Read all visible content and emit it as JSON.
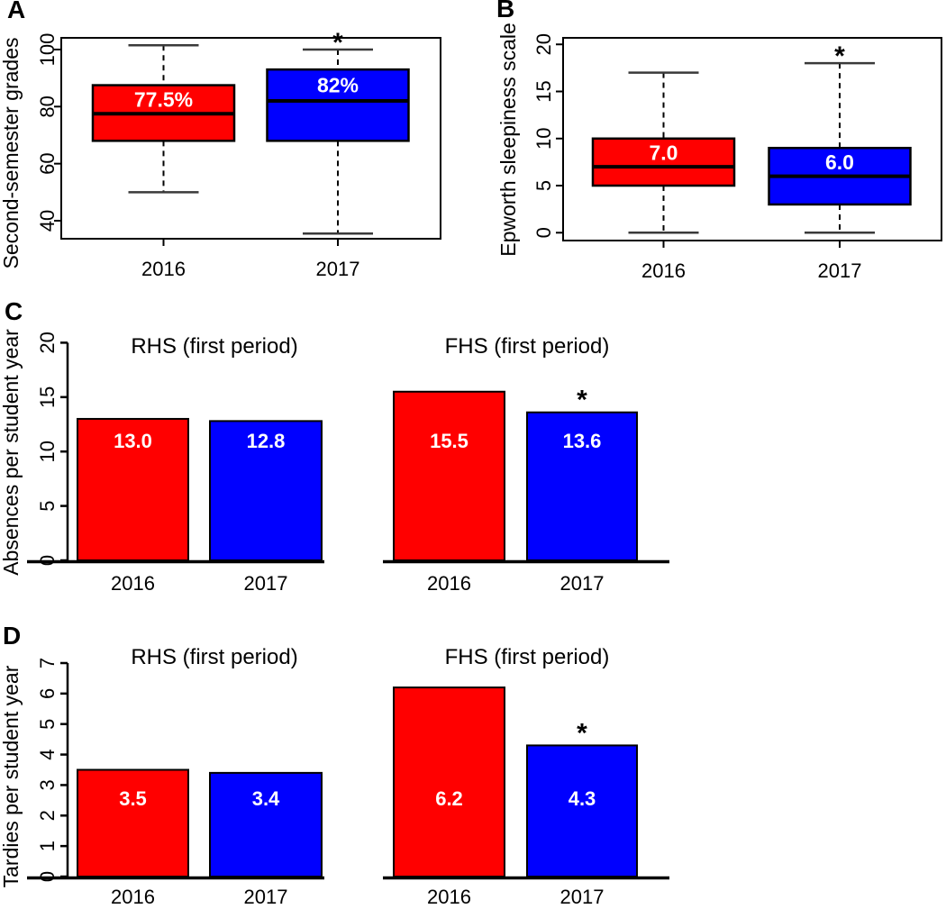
{
  "colors": {
    "red": "#FF0000",
    "blue": "#0000FF",
    "axis": "#000000",
    "whisker_cap": "#3A3A3A",
    "bar_label_text": "#FFFFFF"
  },
  "significance_marker": "*",
  "chart_data": [
    {
      "panel": "A",
      "type": "boxplot",
      "ylabel": "Second-semester grades",
      "yticks": [
        40,
        60,
        80,
        100
      ],
      "ylim": [
        33.7,
        104.1
      ],
      "categories": [
        "2016",
        "2017"
      ],
      "series": [
        {
          "name": "2016",
          "color": "#FF0000",
          "whisker_low": 50,
          "q1": 68,
          "median": 77.5,
          "q3": 87.5,
          "whisker_high": 101.5,
          "median_label": "77.5%",
          "significant": false
        },
        {
          "name": "2017",
          "color": "#0000FF",
          "whisker_low": 35.5,
          "q1": 68,
          "median": 82,
          "q3": 93,
          "whisker_high": 100,
          "median_label": "82%",
          "significant": true
        }
      ]
    },
    {
      "panel": "B",
      "type": "boxplot",
      "ylabel": "Epworth sleepiness scale",
      "yticks": [
        0,
        5,
        10,
        15,
        20
      ],
      "ylim": [
        -0.8,
        20.7
      ],
      "categories": [
        "2016",
        "2017"
      ],
      "series": [
        {
          "name": "2016",
          "color": "#FF0000",
          "whisker_low": 0,
          "q1": 5,
          "median": 7,
          "q3": 10,
          "whisker_high": 17,
          "median_label": "7.0",
          "significant": false
        },
        {
          "name": "2017",
          "color": "#0000FF",
          "whisker_low": 0,
          "q1": 3,
          "median": 6,
          "q3": 9,
          "whisker_high": 18,
          "median_label": "6.0",
          "significant": true
        }
      ]
    },
    {
      "panel": "C",
      "type": "bar",
      "ylabel": "Absences per student year",
      "yticks": [
        0,
        5,
        10,
        15,
        20
      ],
      "ylim": [
        0,
        20
      ],
      "groups": [
        {
          "title": "RHS (first period)",
          "categories": [
            "2016",
            "2017"
          ],
          "values": [
            13.0,
            12.8
          ],
          "value_labels": [
            "13.0",
            "12.8"
          ],
          "colors": [
            "#FF0000",
            "#0000FF"
          ],
          "significant": [
            false,
            false
          ]
        },
        {
          "title": "FHS (first period)",
          "categories": [
            "2016",
            "2017"
          ],
          "values": [
            15.5,
            13.6
          ],
          "value_labels": [
            "15.5",
            "13.6"
          ],
          "colors": [
            "#FF0000",
            "#0000FF"
          ],
          "significant": [
            false,
            true
          ]
        }
      ]
    },
    {
      "panel": "D",
      "type": "bar",
      "ylabel": "Tardies per student year",
      "yticks": [
        0,
        1,
        2,
        3,
        4,
        5,
        6,
        7
      ],
      "ylim": [
        0,
        7
      ],
      "groups": [
        {
          "title": "RHS (first period)",
          "categories": [
            "2016",
            "2017"
          ],
          "values": [
            3.5,
            3.4
          ],
          "value_labels": [
            "3.5",
            "3.4"
          ],
          "colors": [
            "#FF0000",
            "#0000FF"
          ],
          "significant": [
            false,
            false
          ]
        },
        {
          "title": "FHS (first period)",
          "categories": [
            "2016",
            "2017"
          ],
          "values": [
            6.2,
            4.3
          ],
          "value_labels": [
            "6.2",
            "4.3"
          ],
          "colors": [
            "#FF0000",
            "#0000FF"
          ],
          "significant": [
            false,
            true
          ]
        }
      ]
    }
  ]
}
